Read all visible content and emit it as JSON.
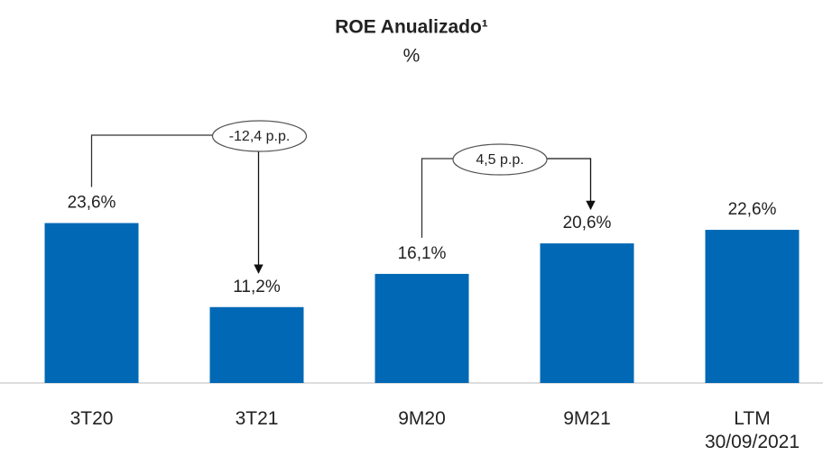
{
  "chart_data": {
    "type": "bar",
    "title": "ROE Anualizado¹",
    "subtitle": "%",
    "categories": [
      "3T20",
      "3T21",
      "9M20",
      "9M21",
      "LTM\n30/09/2021"
    ],
    "values": [
      23.6,
      11.2,
      16.1,
      20.6,
      22.6
    ],
    "value_labels": [
      "23,6%",
      "11,2%",
      "16,1%",
      "20,6%",
      "22,6%"
    ],
    "color": "#0068b4",
    "ylim": [
      0,
      25
    ],
    "annotations": [
      "-12,4 p.p.",
      "4,5 p.p."
    ]
  }
}
